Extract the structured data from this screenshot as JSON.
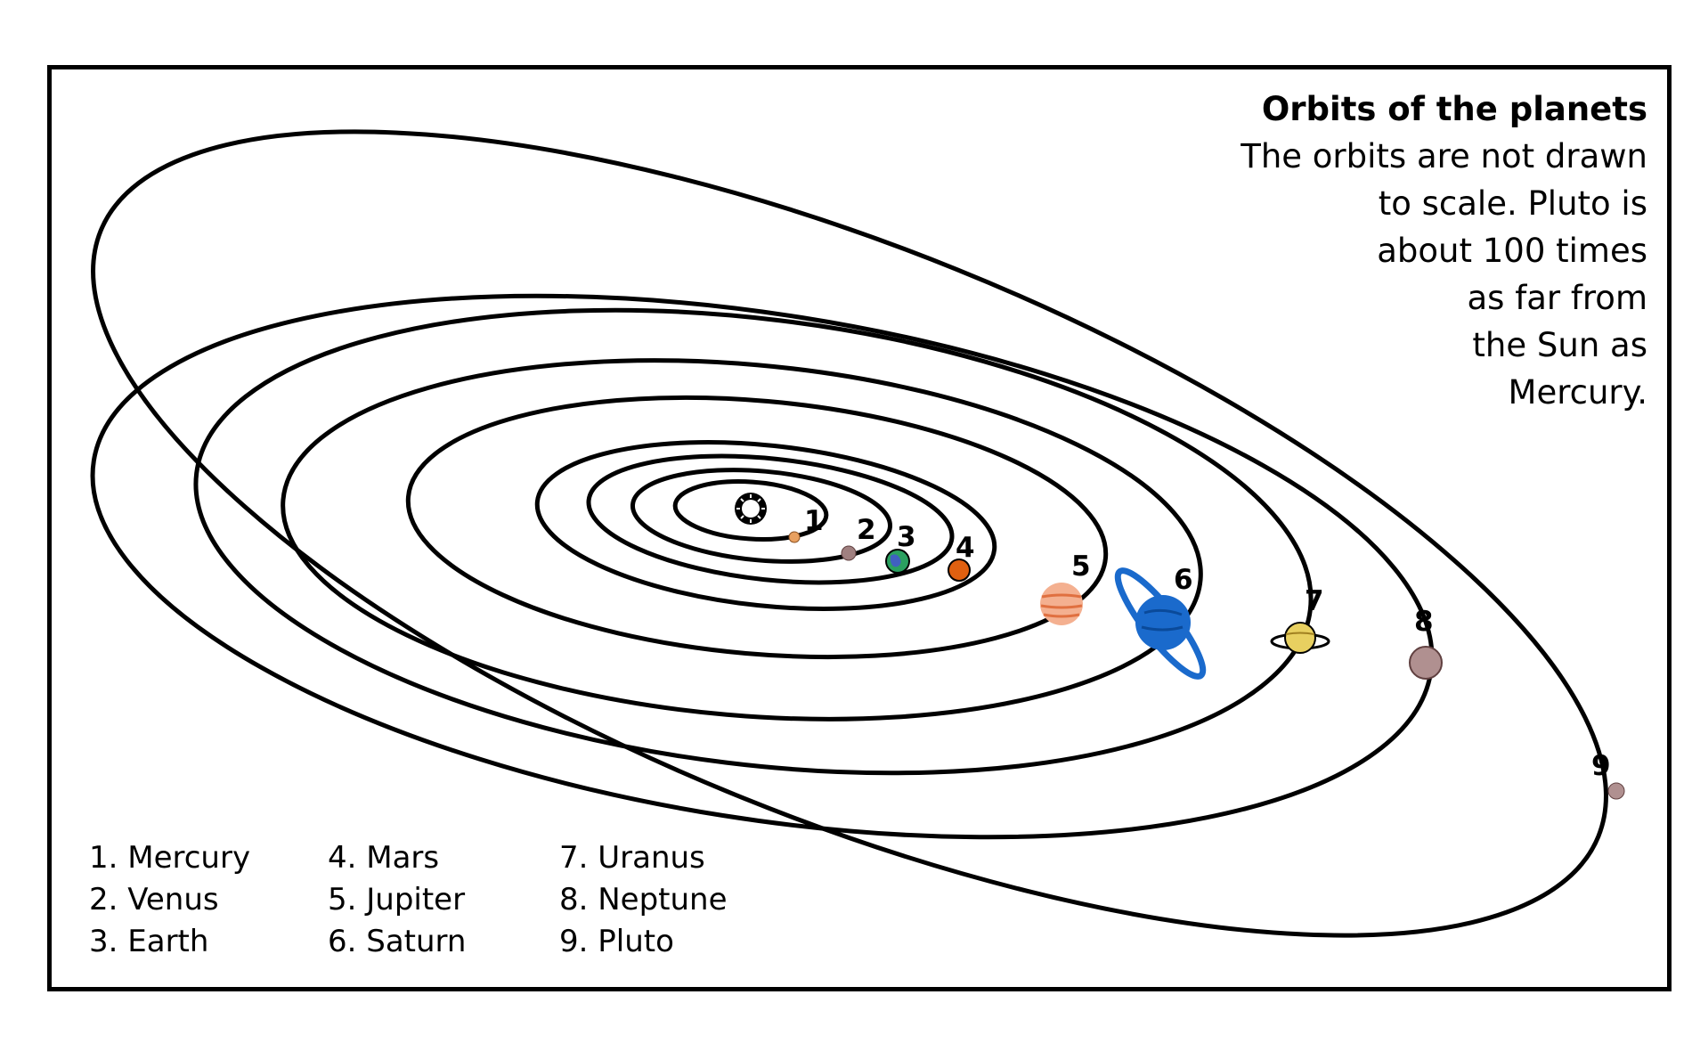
{
  "note": {
    "title": "Orbits of the planets",
    "lines": [
      "The orbits are not drawn",
      "to scale.  Pluto is",
      "about 100 times",
      "as far from",
      "the Sun as",
      "Mercury."
    ]
  },
  "markers": [
    "1",
    "2",
    "3",
    "4",
    "5",
    "6",
    "7",
    "8",
    "9"
  ],
  "legend": {
    "col1": [
      "1. Mercury",
      "2. Venus",
      "3. Earth"
    ],
    "col2": [
      "4. Mars",
      "5. Jupiter",
      "6. Saturn"
    ],
    "col3": [
      "7. Uranus",
      "8. Neptune",
      "9. Pluto"
    ]
  },
  "colors": {
    "mercury": "#e8a060",
    "venus": "#a08080",
    "earth": "#2aa060",
    "mars": "#e06010",
    "jupiter": "#f4a070",
    "saturn": "#1a6acc",
    "uranus": "#e8d060",
    "neptune": "#b09090",
    "pluto": "#b09090"
  }
}
